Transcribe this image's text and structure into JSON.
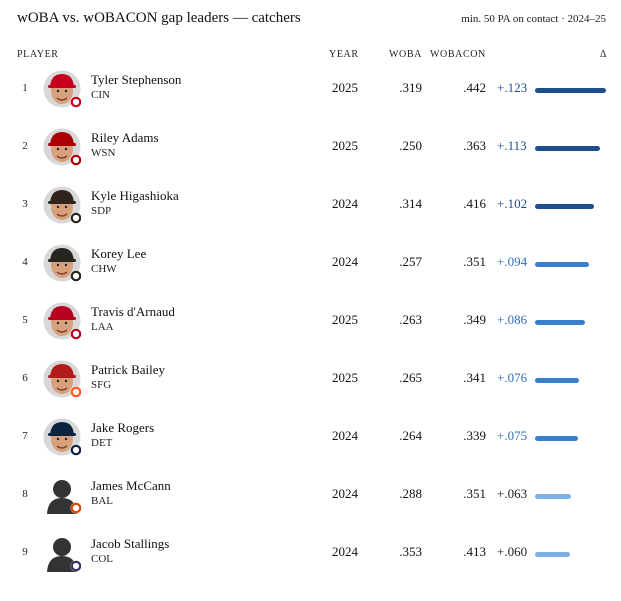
{
  "header": {
    "title": "wOBA vs. wOBACON gap leaders — catchers",
    "subtitle": "min. 50 PA on contact · 2024–25"
  },
  "columns": {
    "player": "PLAYER",
    "year": "YEAR",
    "woba": "WOBA",
    "wobacon": "WOBACON",
    "delta": "Δ"
  },
  "chart_data": {
    "type": "table",
    "title": "wOBA vs. wOBACON gap leaders — catchers",
    "subtitle": "min. 50 PA on contact · 2024–25",
    "columns": [
      "PLAYER",
      "YEAR",
      "WOBA",
      "WOBACON",
      "Δ"
    ],
    "xlim": [
      0,
      0.123
    ],
    "rows": [
      {
        "rank": "1",
        "name": "Tyler Stephenson",
        "team": "CIN",
        "year": "2025",
        "woba": ".319",
        "wobacon": ".442",
        "delta_label": "+.123",
        "delta": 0.123,
        "tier": "high",
        "headshot": "player-photo",
        "logo": "reds-c-logo"
      },
      {
        "rank": "2",
        "name": "Riley Adams",
        "team": "WSN",
        "year": "2025",
        "woba": ".250",
        "wobacon": ".363",
        "delta_label": "+.113",
        "delta": 0.113,
        "tier": "high",
        "headshot": "player-photo",
        "logo": "nationals-w-logo"
      },
      {
        "rank": "3",
        "name": "Kyle Higashioka",
        "team": "SDP",
        "year": "2024",
        "woba": ".314",
        "wobacon": ".416",
        "delta_label": "+.102",
        "delta": 0.102,
        "tier": "high",
        "headshot": "player-photo",
        "logo": "padres-sd-logo"
      },
      {
        "rank": "4",
        "name": "Korey Lee",
        "team": "CHW",
        "year": "2024",
        "woba": ".257",
        "wobacon": ".351",
        "delta_label": "+.094",
        "delta": 0.094,
        "tier": "mid",
        "headshot": "player-photo",
        "logo": "white-sox-logo"
      },
      {
        "rank": "5",
        "name": "Travis d'Arnaud",
        "team": "LAA",
        "year": "2025",
        "woba": ".263",
        "wobacon": ".349",
        "delta_label": "+.086",
        "delta": 0.086,
        "tier": "mid",
        "headshot": "player-photo",
        "logo": "angels-a-logo"
      },
      {
        "rank": "6",
        "name": "Patrick Bailey",
        "team": "SFG",
        "year": "2025",
        "woba": ".265",
        "wobacon": ".341",
        "delta_label": "+.076",
        "delta": 0.076,
        "tier": "mid",
        "headshot": "player-photo",
        "logo": "giants-sf-logo"
      },
      {
        "rank": "7",
        "name": "Jake Rogers",
        "team": "DET",
        "year": "2024",
        "woba": ".264",
        "wobacon": ".339",
        "delta_label": "+.075",
        "delta": 0.075,
        "tier": "mid",
        "headshot": "player-photo",
        "logo": "tigers-d-logo"
      },
      {
        "rank": "8",
        "name": "James McCann",
        "team": "BAL",
        "year": "2024",
        "woba": ".288",
        "wobacon": ".351",
        "delta_label": "+.063",
        "delta": 0.063,
        "tier": "low",
        "headshot": "silhouette",
        "logo": "orioles-bird-logo"
      },
      {
        "rank": "9",
        "name": "Jacob Stallings",
        "team": "COL",
        "year": "2024",
        "woba": ".353",
        "wobacon": ".413",
        "delta_label": "+.060",
        "delta": 0.06,
        "tier": "low",
        "headshot": "silhouette",
        "logo": "rockies-cr-logo"
      }
    ]
  },
  "colors": {
    "bar_high": "#1f4e8c",
    "bar_mid": "#3a7fce",
    "bar_low": "#7fb0e3",
    "text_high": "#1f4e8c",
    "text_mid": "#2f6fb8",
    "text_low": "#222222",
    "skin": "#d9a07c",
    "hair": "#2a1b12",
    "silhouette": "#333333",
    "caps": {
      "CIN": "#c6011f",
      "WSN": "#ab0003",
      "SDP": "#2f241d",
      "CHW": "#27251f",
      "LAA": "#ba0021",
      "SFG": "#b31b1b",
      "DET": "#0c2340"
    },
    "logos": {
      "CIN": "#c6011f",
      "WSN": "#ab0003",
      "SDP": "#2f241d",
      "CHW": "#27251f",
      "LAA": "#ba0021",
      "SFG": "#fd5a1e",
      "DET": "#0c2340",
      "BAL": "#df4601",
      "COL": "#333366"
    }
  }
}
